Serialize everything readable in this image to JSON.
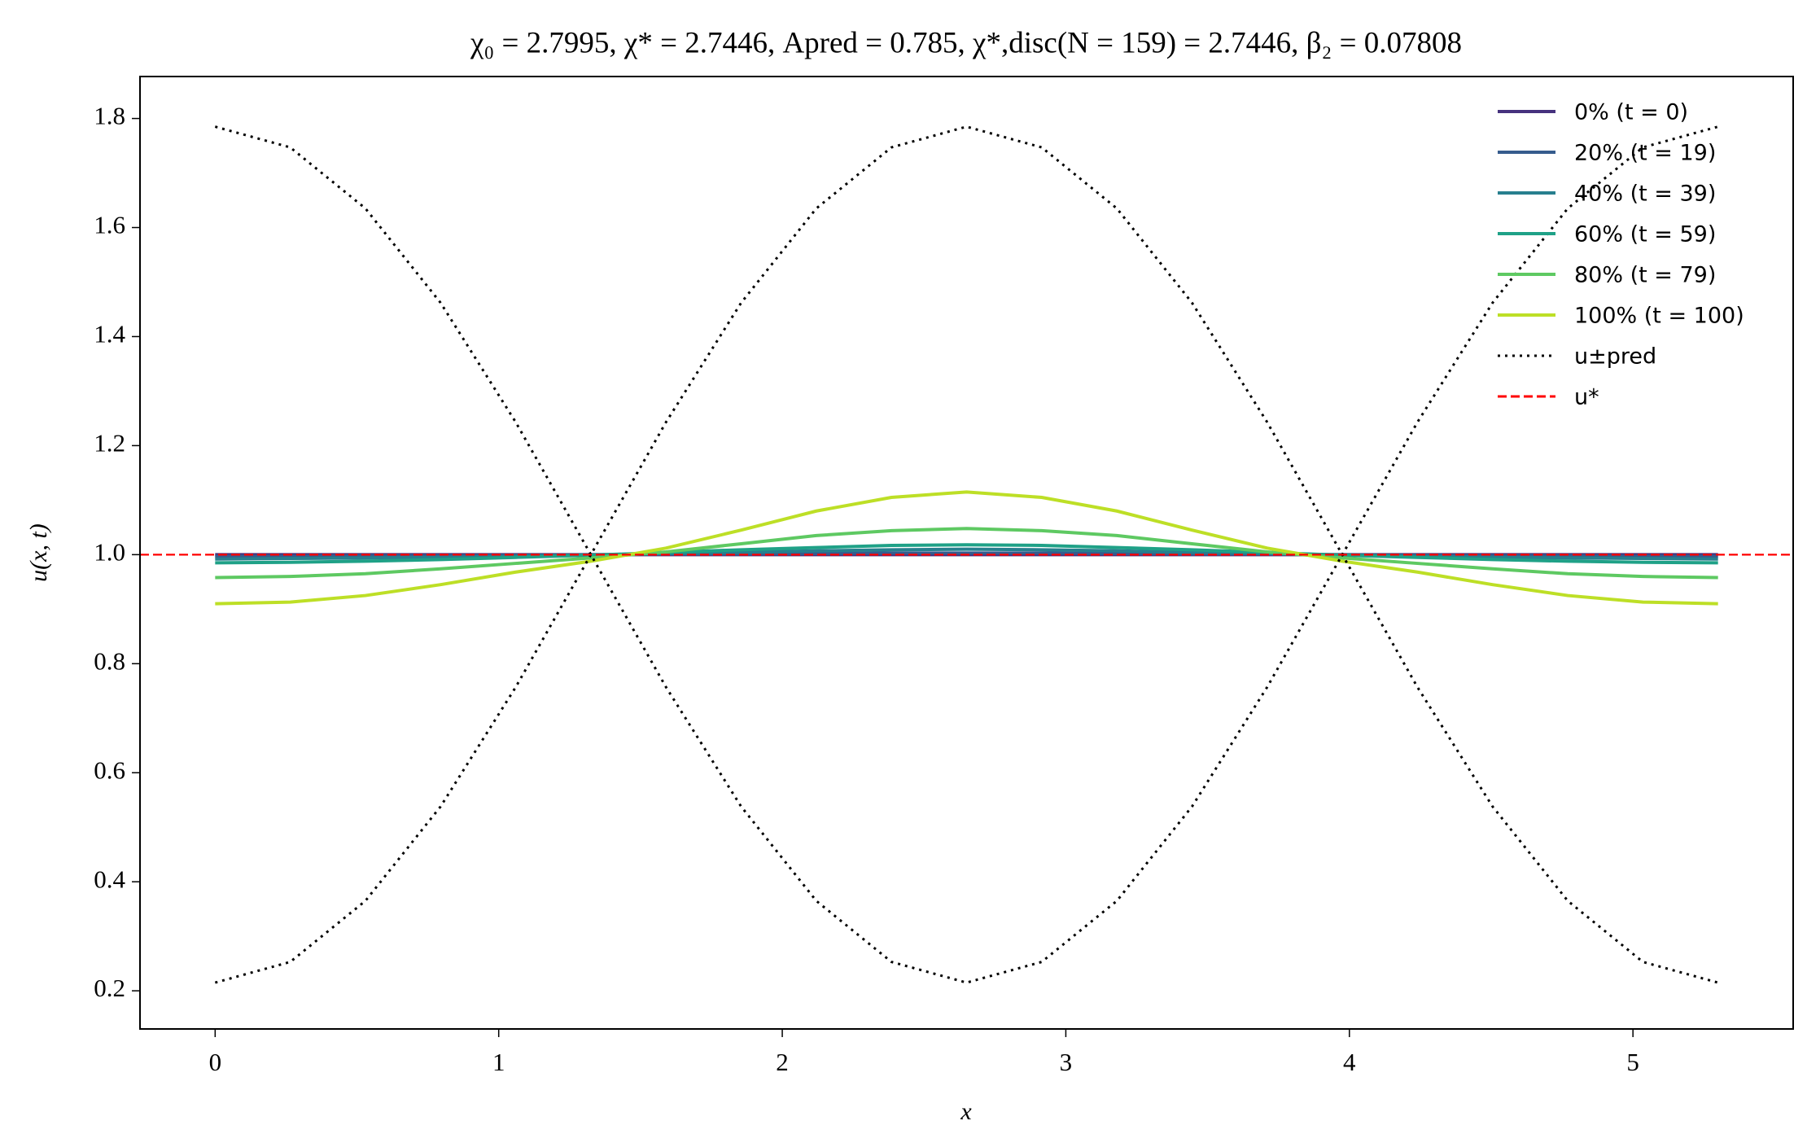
{
  "chart_data": {
    "type": "line",
    "title": "χ₀ = 2.7995,  χ* = 2.7446,  Apred = 0.785,  χ*,disc(N = 159) = 2.7446,  β₂ = 0.07808",
    "x_label": "x",
    "y_label": "u(x, t)",
    "x": [
      0,
      0.265,
      0.53,
      0.795,
      1.06,
      1.325,
      1.59,
      1.855,
      2.12,
      2.385,
      2.65,
      2.915,
      3.18,
      3.445,
      3.71,
      3.975,
      4.24,
      4.505,
      4.77,
      5.035,
      5.3
    ],
    "series": [
      {
        "name": "0% (t = 0)",
        "color": "#46327e",
        "style": "solid",
        "values": [
          1,
          1,
          1,
          1,
          1,
          1,
          1,
          1,
          1,
          1,
          1,
          1,
          1,
          1,
          1,
          1,
          1,
          1,
          1,
          1,
          1
        ]
      },
      {
        "name": "20% (t = 19)",
        "color": "#365c8d",
        "style": "solid",
        "values": [
          0.997,
          0.997,
          0.998,
          0.998,
          0.999,
          1.0,
          1.001,
          1.001,
          1.002,
          1.003,
          1.003,
          1.003,
          1.002,
          1.001,
          1.001,
          1.0,
          0.999,
          0.998,
          0.998,
          0.997,
          0.997
        ]
      },
      {
        "name": "40% (t = 39)",
        "color": "#277f8e",
        "style": "solid",
        "values": [
          0.992,
          0.993,
          0.994,
          0.995,
          0.997,
          0.999,
          1.002,
          1.004,
          1.007,
          1.009,
          1.01,
          1.009,
          1.007,
          1.004,
          1.002,
          0.999,
          0.997,
          0.995,
          0.994,
          0.993,
          0.992
        ]
      },
      {
        "name": "60% (t = 59)",
        "color": "#1fa187",
        "style": "solid",
        "values": [
          0.985,
          0.986,
          0.988,
          0.991,
          0.995,
          0.999,
          1.004,
          1.009,
          1.013,
          1.017,
          1.018,
          1.017,
          1.013,
          1.009,
          1.004,
          0.999,
          0.995,
          0.991,
          0.988,
          0.986,
          0.985
        ]
      },
      {
        "name": "80% (t = 79)",
        "color": "#5ec962",
        "style": "solid",
        "values": [
          0.958,
          0.96,
          0.965,
          0.974,
          0.984,
          0.994,
          1.005,
          1.02,
          1.035,
          1.044,
          1.048,
          1.044,
          1.035,
          1.02,
          1.005,
          0.994,
          0.984,
          0.974,
          0.965,
          0.96,
          0.958
        ]
      },
      {
        "name": "100% (t = 100)",
        "color": "#bddf26",
        "style": "solid",
        "values": [
          0.91,
          0.913,
          0.925,
          0.945,
          0.968,
          0.988,
          1.012,
          1.045,
          1.08,
          1.105,
          1.115,
          1.105,
          1.08,
          1.045,
          1.012,
          0.988,
          0.968,
          0.945,
          0.925,
          0.913,
          0.91
        ]
      },
      {
        "name": "u±pred",
        "color": "#000000",
        "style": "dotted",
        "values": [
          1.785,
          1.747,
          1.635,
          1.462,
          1.243,
          1.0,
          0.757,
          0.538,
          0.365,
          0.253,
          0.215,
          0.253,
          0.365,
          0.538,
          0.757,
          1.0,
          1.243,
          1.462,
          1.635,
          1.747,
          1.785
        ]
      },
      {
        "color": "#000000",
        "style": "dotted",
        "values": [
          0.215,
          0.253,
          0.365,
          0.538,
          0.757,
          1.0,
          1.243,
          1.462,
          1.635,
          1.747,
          1.785,
          1.747,
          1.635,
          1.462,
          1.243,
          1.0,
          0.757,
          0.538,
          0.365,
          0.253,
          0.215
        ]
      }
    ],
    "hlines": [
      {
        "name": "u*",
        "y": 1,
        "color": "#ff0000",
        "style": "dashed"
      }
    ],
    "xlim": [
      -0.265,
      5.565
    ],
    "ylim": [
      0.13,
      1.877
    ],
    "xticks": [
      0,
      1,
      2,
      3,
      4,
      5
    ],
    "yticks": [
      0.2,
      0.4,
      0.6,
      0.8,
      {
        "value": 1,
        "label": "1.0"
      },
      1.2,
      1.4,
      1.6,
      1.8
    ],
    "grid": false,
    "legend": "upper right"
  }
}
